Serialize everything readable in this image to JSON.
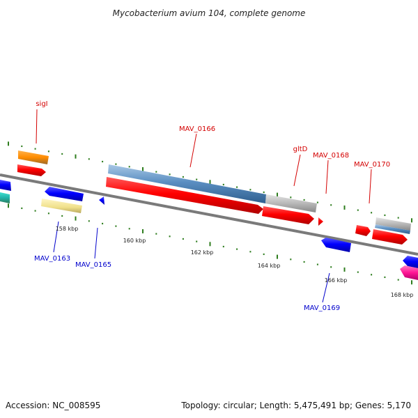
{
  "title": "Mycobacterium avium 104, complete genome",
  "footer": {
    "accession": "Accession: NC_008595",
    "summary": "Topology: circular; Length: 5,475,491 bp; Genes: 5,170"
  },
  "scale": {
    "tick_labels": [
      "158 kbp",
      "160 kbp",
      "162 kbp",
      "164 kbp",
      "166 kbp",
      "168 kbp"
    ]
  },
  "colors": {
    "backbone": "#7a7a7a",
    "tick": "#2e7d1e",
    "label_forward": "#d40000",
    "label_reverse": "#0000cc"
  },
  "labels": {
    "sigI": "sigI",
    "MAV_0166": "MAV_0166",
    "gltD": "gltD",
    "MAV_0168": "MAV_0168",
    "MAV_0170": "MAV_0170",
    "MAV_0163": "MAV_0163",
    "MAV_0165": "MAV_0165",
    "MAV_0169": "MAV_0169"
  }
}
